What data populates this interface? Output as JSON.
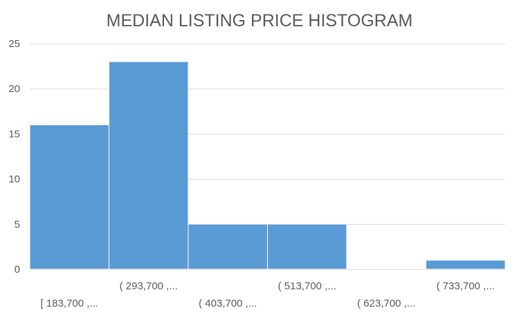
{
  "chart_data": {
    "type": "bar",
    "title": "MEDIAN LISTING PRICE HISTOGRAM",
    "xlabel": "",
    "ylabel": "",
    "categories": [
      "[ 183,700 ,...",
      "( 293,700 ,...",
      "( 403,700 ,...",
      "( 513,700 ,...",
      "( 623,700 ,...",
      "( 733,700 ,..."
    ],
    "values": [
      16,
      23,
      5,
      5,
      0,
      1
    ],
    "ylim": [
      0,
      25
    ],
    "yticks": [
      "0",
      "5",
      "10",
      "15",
      "20",
      "25"
    ],
    "grid": true,
    "legend": "none",
    "colors": {
      "bar": "#5b9bd5",
      "grid": "#d9d9d9",
      "text": "#595959"
    }
  }
}
